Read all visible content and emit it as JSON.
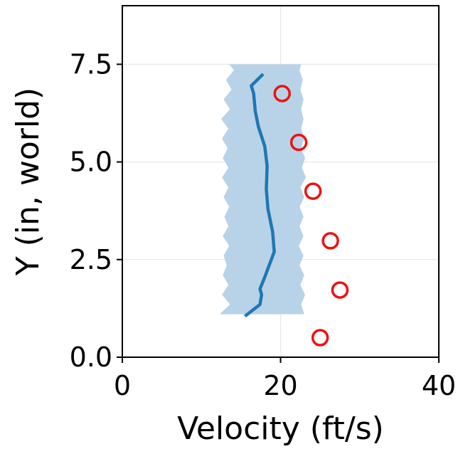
{
  "chart_data": {
    "type": "line",
    "title": "",
    "xlabel": "Velocity (ft/s)",
    "ylabel": "Y (in, world)",
    "xlim": [
      0,
      40
    ],
    "ylim": [
      0,
      9
    ],
    "xticks": [
      0,
      20,
      40
    ],
    "xtick_labels": [
      "0",
      "20",
      "40"
    ],
    "yticks": [
      0.0,
      2.5,
      5.0,
      7.5
    ],
    "ytick_labels": [
      "0.0",
      "2.5",
      "5.0",
      "7.5"
    ],
    "grid": true,
    "legend": "none",
    "series": [
      {
        "kind": "band",
        "color": "#b8d3e8",
        "points": [
          {
            "y": 1.1,
            "low": 12.3,
            "high": 23.0
          },
          {
            "y": 1.35,
            "low": 13.6,
            "high": 22.6
          },
          {
            "y": 1.6,
            "low": 12.6,
            "high": 23.1
          },
          {
            "y": 1.85,
            "low": 13.4,
            "high": 22.5
          },
          {
            "y": 2.1,
            "low": 12.7,
            "high": 23.0
          },
          {
            "y": 2.35,
            "low": 13.2,
            "high": 22.4
          },
          {
            "y": 2.6,
            "low": 12.8,
            "high": 22.9
          },
          {
            "y": 2.85,
            "low": 13.5,
            "high": 22.3
          },
          {
            "y": 3.1,
            "low": 12.7,
            "high": 22.9
          },
          {
            "y": 3.35,
            "low": 13.4,
            "high": 22.4
          },
          {
            "y": 3.6,
            "low": 12.9,
            "high": 22.9
          },
          {
            "y": 3.85,
            "low": 13.5,
            "high": 22.4
          },
          {
            "y": 4.1,
            "low": 12.8,
            "high": 23.0
          },
          {
            "y": 4.35,
            "low": 13.4,
            "high": 22.5
          },
          {
            "y": 4.6,
            "low": 12.6,
            "high": 23.2
          },
          {
            "y": 4.85,
            "low": 13.4,
            "high": 22.7
          },
          {
            "y": 5.1,
            "low": 12.7,
            "high": 23.1
          },
          {
            "y": 5.35,
            "low": 13.3,
            "high": 22.6
          },
          {
            "y": 5.6,
            "low": 12.6,
            "high": 23.0
          },
          {
            "y": 5.85,
            "low": 13.4,
            "high": 22.6
          },
          {
            "y": 6.1,
            "low": 12.5,
            "high": 22.9
          },
          {
            "y": 6.35,
            "low": 13.6,
            "high": 22.6
          },
          {
            "y": 6.6,
            "low": 12.8,
            "high": 22.9
          },
          {
            "y": 6.85,
            "low": 13.8,
            "high": 22.5
          },
          {
            "y": 7.1,
            "low": 13.1,
            "high": 22.8
          },
          {
            "y": 7.35,
            "low": 14.1,
            "high": 22.4
          },
          {
            "y": 7.5,
            "low": 13.5,
            "high": 22.6
          }
        ]
      },
      {
        "kind": "line",
        "color": "#1f77b4",
        "points": [
          {
            "x": 15.5,
            "y": 1.05
          },
          {
            "x": 17.4,
            "y": 1.35
          },
          {
            "x": 17.6,
            "y": 1.6
          },
          {
            "x": 17.4,
            "y": 1.75
          },
          {
            "x": 18.0,
            "y": 2.05
          },
          {
            "x": 19.2,
            "y": 2.7
          },
          {
            "x": 19.0,
            "y": 3.2
          },
          {
            "x": 18.4,
            "y": 3.8
          },
          {
            "x": 18.2,
            "y": 4.3
          },
          {
            "x": 18.3,
            "y": 4.9
          },
          {
            "x": 18.0,
            "y": 5.4
          },
          {
            "x": 17.2,
            "y": 5.9
          },
          {
            "x": 16.8,
            "y": 6.3
          },
          {
            "x": 16.6,
            "y": 6.75
          },
          {
            "x": 16.3,
            "y": 6.95
          },
          {
            "x": 17.8,
            "y": 7.25
          }
        ]
      },
      {
        "kind": "scatter",
        "color": "#ee1111",
        "marker": "open-circle",
        "points": [
          {
            "x": 25.0,
            "y": 0.5
          },
          {
            "x": 27.5,
            "y": 1.72
          },
          {
            "x": 26.3,
            "y": 2.98
          },
          {
            "x": 24.1,
            "y": 4.25
          },
          {
            "x": 22.3,
            "y": 5.5
          },
          {
            "x": 20.2,
            "y": 6.75
          }
        ]
      }
    ]
  }
}
